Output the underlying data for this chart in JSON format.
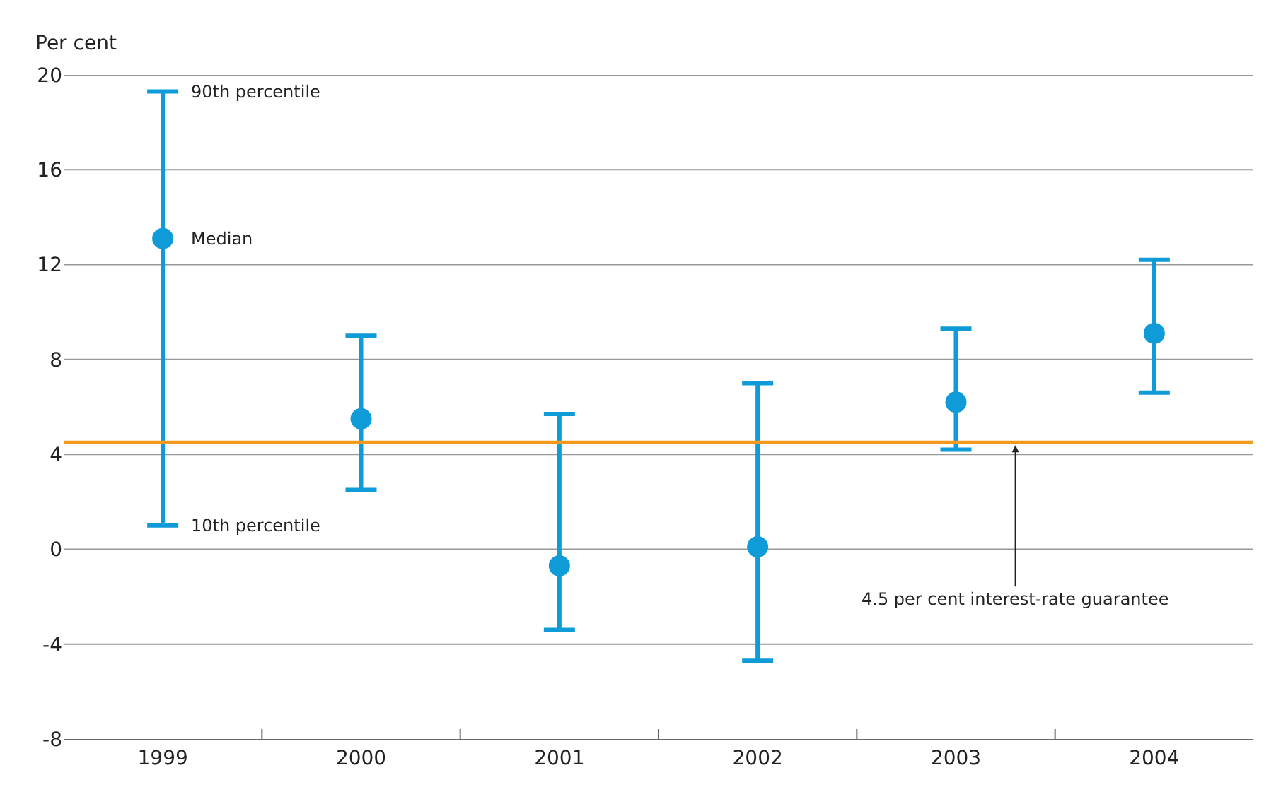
{
  "chart_data": {
    "type": "scatter",
    "ylabel": "Per cent",
    "categories": [
      "1999",
      "2000",
      "2001",
      "2002",
      "2003",
      "2004"
    ],
    "series": [
      {
        "color": "#0f9bd7",
        "values": [
          13.1,
          5.5,
          -0.7,
          0.1,
          6.2,
          9.1
        ],
        "errors": [
          [
            1.0,
            19.3
          ],
          [
            2.5,
            9.0
          ],
          [
            -3.4,
            5.7
          ],
          [
            -4.7,
            7.0
          ],
          [
            4.2,
            9.3
          ],
          [
            6.6,
            12.2
          ]
        ]
      }
    ],
    "marker": "circle",
    "ylim": [
      -8,
      20
    ],
    "yticks": [
      -8,
      -4,
      0,
      4,
      8,
      12,
      16,
      20
    ],
    "grid": "y",
    "ref_lines": [
      {
        "axis": "y",
        "value": 4.5,
        "label": "4.5 per cent interest-rate guarantee",
        "color": "#f39a1e"
      }
    ],
    "annotations": [
      {
        "text": "90th percentile",
        "x": "1999",
        "y": 19.3
      },
      {
        "text": "Median",
        "x": "1999",
        "y": 13.1
      },
      {
        "text": "10th percentile",
        "x": "1999",
        "y": 1.0
      }
    ]
  }
}
